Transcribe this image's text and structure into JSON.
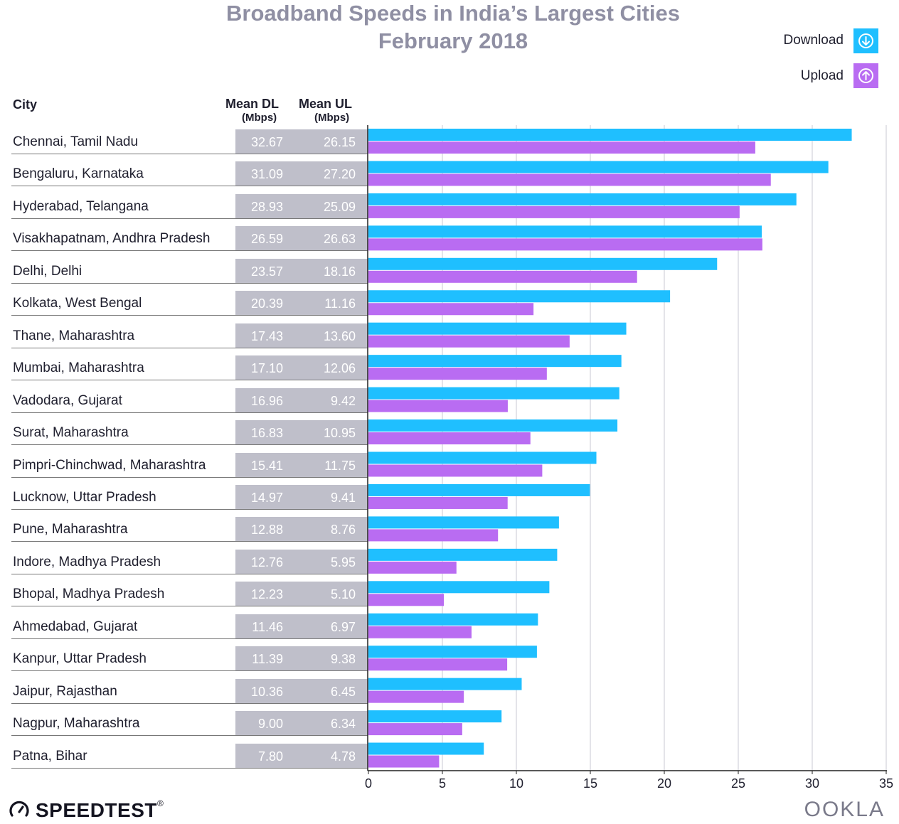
{
  "header": {
    "title_line1": "Broadband Speeds in India’s Largest Cities",
    "title_line2": "February 2018"
  },
  "legend": {
    "download_label": "Download",
    "upload_label": "Upload",
    "download_icon": "arrow-down-circle-icon",
    "upload_icon": "arrow-up-circle-icon"
  },
  "columns": {
    "city": "City",
    "mean_dl": "Mean DL",
    "mean_ul": "Mean UL",
    "unit": "(Mbps)"
  },
  "colors": {
    "download": "#1fbfff",
    "upload": "#b96cf2",
    "value_box": "#bfbfca",
    "title": "#8f8fa3"
  },
  "footer": {
    "brand": "SPEEDTEST",
    "trademark": "®",
    "company": "OOKLA"
  },
  "chart_data": {
    "type": "bar",
    "orientation": "horizontal",
    "title": "Broadband Speeds in India’s Largest Cities",
    "subtitle": "February 2018",
    "xlim": [
      0,
      35
    ],
    "xticks": [
      0,
      5,
      10,
      15,
      20,
      25,
      30,
      35
    ],
    "grid": true,
    "legend_position": "top-right",
    "categories": [
      "Chennai, Tamil Nadu",
      "Bengaluru, Karnataka",
      "Hyderabad, Telangana",
      "Visakhapatnam, Andhra Pradesh",
      "Delhi, Delhi",
      "Kolkata, West Bengal",
      "Thane, Maharashtra",
      "Mumbai, Maharashtra",
      "Vadodara, Gujarat",
      "Surat, Maharashtra",
      "Pimpri-Chinchwad, Maharashtra",
      "Lucknow, Uttar Pradesh",
      "Pune, Maharashtra",
      "Indore, Madhya Pradesh",
      "Bhopal, Madhya Pradesh",
      "Ahmedabad, Gujarat",
      "Kanpur, Uttar Pradesh",
      "Jaipur, Rajasthan",
      "Nagpur, Maharashtra",
      "Patna, Bihar"
    ],
    "series": [
      {
        "name": "Download",
        "values": [
          32.67,
          31.09,
          28.93,
          26.59,
          23.57,
          20.39,
          17.43,
          17.1,
          16.96,
          16.83,
          15.41,
          14.97,
          12.88,
          12.76,
          12.23,
          11.46,
          11.39,
          10.36,
          9.0,
          7.8
        ],
        "labels": [
          "32.67",
          "31.09",
          "28.93",
          "26.59",
          "23.57",
          "20.39",
          "17.43",
          "17.10",
          "16.96",
          "16.83",
          "15.41",
          "14.97",
          "12.88",
          "12.76",
          "12.23",
          "11.46",
          "11.39",
          "10.36",
          "9.00",
          "7.80"
        ]
      },
      {
        "name": "Upload",
        "values": [
          26.15,
          27.2,
          25.09,
          26.63,
          18.16,
          11.16,
          13.6,
          12.06,
          9.42,
          10.95,
          11.75,
          9.41,
          8.76,
          5.95,
          5.1,
          6.97,
          9.38,
          6.45,
          6.34,
          4.78
        ],
        "labels": [
          "26.15",
          "27.20",
          "25.09",
          "26.63",
          "18.16",
          "11.16",
          "13.60",
          "12.06",
          "9.42",
          "10.95",
          "11.75",
          "9.41",
          "8.76",
          "5.95",
          "5.10",
          "6.97",
          "9.38",
          "6.45",
          "6.34",
          "4.78"
        ]
      }
    ]
  }
}
